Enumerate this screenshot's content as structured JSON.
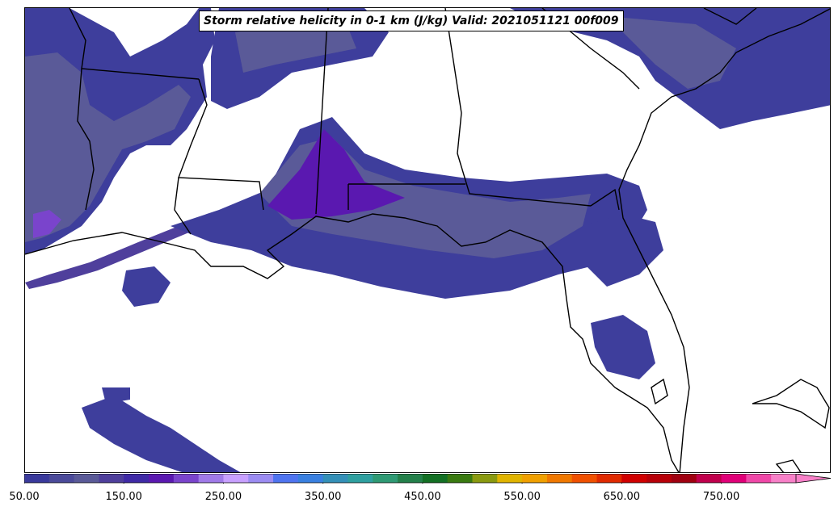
{
  "title": "Storm relative helicity in 0-1 km (J/kg) Valid: 2021051121 00f009",
  "colorbar": {
    "min": 50,
    "max": 825,
    "step": 25,
    "extend": "max",
    "tick_labels": [
      "50.00",
      "150.00",
      "250.00",
      "350.00",
      "450.00",
      "550.00",
      "650.00",
      "750.00"
    ],
    "tick_values": [
      50,
      150,
      250,
      350,
      450,
      550,
      650,
      750
    ],
    "colors": [
      "#3a3a9c",
      "#4b4a9a",
      "#5a5a98",
      "#4f3f9c",
      "#3f2aa6",
      "#5a18b0",
      "#7a44cc",
      "#a07ae8",
      "#c8a0ff",
      "#9c8cf2",
      "#4f74f0",
      "#3a80e0",
      "#3490b8",
      "#2fa0a0",
      "#2f9a74",
      "#24804a",
      "#137024",
      "#3a7a10",
      "#8a9a10",
      "#e0b400",
      "#f0a000",
      "#f07800",
      "#f05000",
      "#e02a00",
      "#d00000",
      "#b80008",
      "#a00010",
      "#c0004c",
      "#e00078",
      "#f048a8",
      "#f880c8"
    ]
  },
  "chart_data": {
    "type": "heatmap",
    "title": "Storm relative helicity in 0-1 km (J/kg) Valid: 2021051121 00f009",
    "colorbar_range": [
      50,
      825
    ],
    "colorbar_ticks": [
      50,
      150,
      250,
      350,
      450,
      550,
      650,
      750
    ],
    "extend": "max"
  }
}
